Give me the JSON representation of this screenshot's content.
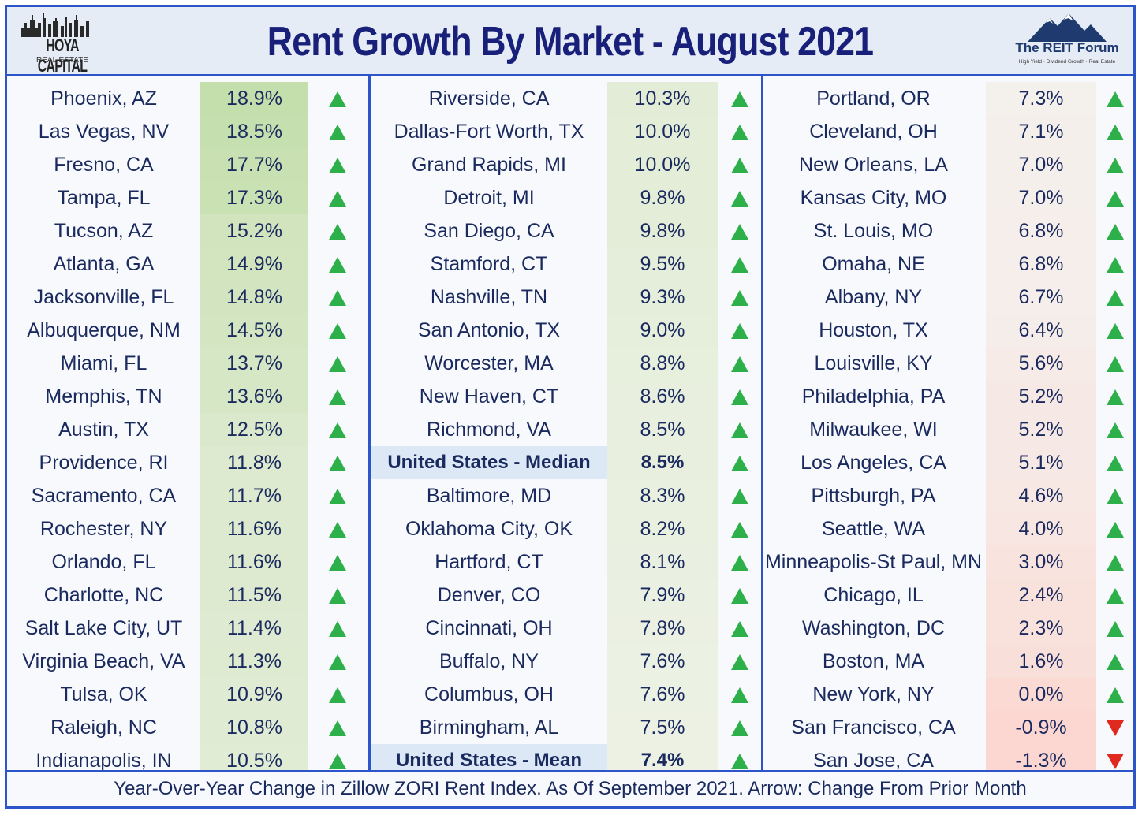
{
  "header": {
    "title": "Rent Growth By Market - August 2021",
    "logo_left_line1": "HOYA CAPITAL",
    "logo_left_line2": "REAL ESTATE",
    "logo_right_line1": "The REIT Forum",
    "logo_right_line2": "High Yield · Dividend Growth · Real Estate"
  },
  "footer": {
    "text": "Year-Over-Year Change in Zillow ZORI Rent Index. As Of September 2021. Arrow: Change From Prior Month"
  },
  "colors": {
    "border": "#2b55c8",
    "title": "#18207a",
    "up_arrow": "#2db04a",
    "down_arrow": "#e02a1f",
    "high_growth": "#c9e0b4",
    "low_growth": "#f8dcd8"
  },
  "chart_data": {
    "type": "table",
    "title": "Rent Growth By Market - August 2021",
    "columns": [
      [
        {
          "market": "Phoenix, AZ",
          "value": 18.9,
          "label": "18.9%",
          "direction": "up"
        },
        {
          "market": "Las Vegas, NV",
          "value": 18.5,
          "label": "18.5%",
          "direction": "up"
        },
        {
          "market": "Fresno, CA",
          "value": 17.7,
          "label": "17.7%",
          "direction": "up"
        },
        {
          "market": "Tampa, FL",
          "value": 17.3,
          "label": "17.3%",
          "direction": "up"
        },
        {
          "market": "Tucson, AZ",
          "value": 15.2,
          "label": "15.2%",
          "direction": "up"
        },
        {
          "market": "Atlanta, GA",
          "value": 14.9,
          "label": "14.9%",
          "direction": "up"
        },
        {
          "market": "Jacksonville, FL",
          "value": 14.8,
          "label": "14.8%",
          "direction": "up"
        },
        {
          "market": "Albuquerque, NM",
          "value": 14.5,
          "label": "14.5%",
          "direction": "up"
        },
        {
          "market": "Miami, FL",
          "value": 13.7,
          "label": "13.7%",
          "direction": "up"
        },
        {
          "market": "Memphis, TN",
          "value": 13.6,
          "label": "13.6%",
          "direction": "up"
        },
        {
          "market": "Austin, TX",
          "value": 12.5,
          "label": "12.5%",
          "direction": "up"
        },
        {
          "market": "Providence, RI",
          "value": 11.8,
          "label": "11.8%",
          "direction": "up"
        },
        {
          "market": "Sacramento, CA",
          "value": 11.7,
          "label": "11.7%",
          "direction": "up"
        },
        {
          "market": "Rochester, NY",
          "value": 11.6,
          "label": "11.6%",
          "direction": "up"
        },
        {
          "market": "Orlando, FL",
          "value": 11.6,
          "label": "11.6%",
          "direction": "up"
        },
        {
          "market": "Charlotte, NC",
          "value": 11.5,
          "label": "11.5%",
          "direction": "up"
        },
        {
          "market": "Salt Lake City, UT",
          "value": 11.4,
          "label": "11.4%",
          "direction": "up"
        },
        {
          "market": "Virginia Beach, VA",
          "value": 11.3,
          "label": "11.3%",
          "direction": "up"
        },
        {
          "market": "Tulsa, OK",
          "value": 10.9,
          "label": "10.9%",
          "direction": "up"
        },
        {
          "market": "Raleigh, NC",
          "value": 10.8,
          "label": "10.8%",
          "direction": "up"
        },
        {
          "market": "Indianapolis, IN",
          "value": 10.5,
          "label": "10.5%",
          "direction": "up"
        }
      ],
      [
        {
          "market": "Riverside, CA",
          "value": 10.3,
          "label": "10.3%",
          "direction": "up"
        },
        {
          "market": "Dallas-Fort Worth, TX",
          "value": 10.0,
          "label": "10.0%",
          "direction": "up"
        },
        {
          "market": "Grand Rapids, MI",
          "value": 10.0,
          "label": "10.0%",
          "direction": "up"
        },
        {
          "market": "Detroit, MI",
          "value": 9.8,
          "label": "9.8%",
          "direction": "up"
        },
        {
          "market": "San Diego, CA",
          "value": 9.8,
          "label": "9.8%",
          "direction": "up"
        },
        {
          "market": "Stamford, CT",
          "value": 9.5,
          "label": "9.5%",
          "direction": "up"
        },
        {
          "market": "Nashville, TN",
          "value": 9.3,
          "label": "9.3%",
          "direction": "up"
        },
        {
          "market": "San Antonio, TX",
          "value": 9.0,
          "label": "9.0%",
          "direction": "up"
        },
        {
          "market": "Worcester, MA",
          "value": 8.8,
          "label": "8.8%",
          "direction": "up"
        },
        {
          "market": "New Haven, CT",
          "value": 8.6,
          "label": "8.6%",
          "direction": "up"
        },
        {
          "market": "Richmond, VA",
          "value": 8.5,
          "label": "8.5%",
          "direction": "up"
        },
        {
          "market": "United States - Median",
          "value": 8.5,
          "label": "8.5%",
          "direction": "up",
          "highlight": true
        },
        {
          "market": "Baltimore, MD",
          "value": 8.3,
          "label": "8.3%",
          "direction": "up"
        },
        {
          "market": "Oklahoma City, OK",
          "value": 8.2,
          "label": "8.2%",
          "direction": "up"
        },
        {
          "market": "Hartford, CT",
          "value": 8.1,
          "label": "8.1%",
          "direction": "up"
        },
        {
          "market": "Denver, CO",
          "value": 7.9,
          "label": "7.9%",
          "direction": "up"
        },
        {
          "market": "Cincinnati, OH",
          "value": 7.8,
          "label": "7.8%",
          "direction": "up"
        },
        {
          "market": "Buffalo, NY",
          "value": 7.6,
          "label": "7.6%",
          "direction": "up"
        },
        {
          "market": "Columbus, OH",
          "value": 7.6,
          "label": "7.6%",
          "direction": "up"
        },
        {
          "market": "Birmingham, AL",
          "value": 7.5,
          "label": "7.5%",
          "direction": "up"
        },
        {
          "market": "United States - Mean",
          "value": 7.4,
          "label": "7.4%",
          "direction": "up",
          "highlight": true
        }
      ],
      [
        {
          "market": "Portland, OR",
          "value": 7.3,
          "label": "7.3%",
          "direction": "up"
        },
        {
          "market": "Cleveland, OH",
          "value": 7.1,
          "label": "7.1%",
          "direction": "up"
        },
        {
          "market": "New Orleans, LA",
          "value": 7.0,
          "label": "7.0%",
          "direction": "up"
        },
        {
          "market": "Kansas City, MO",
          "value": 7.0,
          "label": "7.0%",
          "direction": "up"
        },
        {
          "market": "St. Louis, MO",
          "value": 6.8,
          "label": "6.8%",
          "direction": "up"
        },
        {
          "market": "Omaha, NE",
          "value": 6.8,
          "label": "6.8%",
          "direction": "up"
        },
        {
          "market": "Albany, NY",
          "value": 6.7,
          "label": "6.7%",
          "direction": "up"
        },
        {
          "market": "Houston, TX",
          "value": 6.4,
          "label": "6.4%",
          "direction": "up"
        },
        {
          "market": "Louisville, KY",
          "value": 5.6,
          "label": "5.6%",
          "direction": "up"
        },
        {
          "market": "Philadelphia, PA",
          "value": 5.2,
          "label": "5.2%",
          "direction": "up"
        },
        {
          "market": "Milwaukee, WI",
          "value": 5.2,
          "label": "5.2%",
          "direction": "up"
        },
        {
          "market": "Los Angeles, CA",
          "value": 5.1,
          "label": "5.1%",
          "direction": "up"
        },
        {
          "market": "Pittsburgh, PA",
          "value": 4.6,
          "label": "4.6%",
          "direction": "up"
        },
        {
          "market": "Seattle, WA",
          "value": 4.0,
          "label": "4.0%",
          "direction": "up"
        },
        {
          "market": "Minneapolis-St Paul, MN",
          "value": 3.0,
          "label": "3.0%",
          "direction": "up"
        },
        {
          "market": "Chicago, IL",
          "value": 2.4,
          "label": "2.4%",
          "direction": "up"
        },
        {
          "market": "Washington, DC",
          "value": 2.3,
          "label": "2.3%",
          "direction": "up"
        },
        {
          "market": "Boston, MA",
          "value": 1.6,
          "label": "1.6%",
          "direction": "up"
        },
        {
          "market": "New York, NY",
          "value": 0.0,
          "label": "0.0%",
          "direction": "up"
        },
        {
          "market": "San Francisco, CA",
          "value": -0.9,
          "label": "-0.9%",
          "direction": "down"
        },
        {
          "market": "San Jose, CA",
          "value": -1.3,
          "label": "-1.3%",
          "direction": "down"
        }
      ]
    ]
  }
}
